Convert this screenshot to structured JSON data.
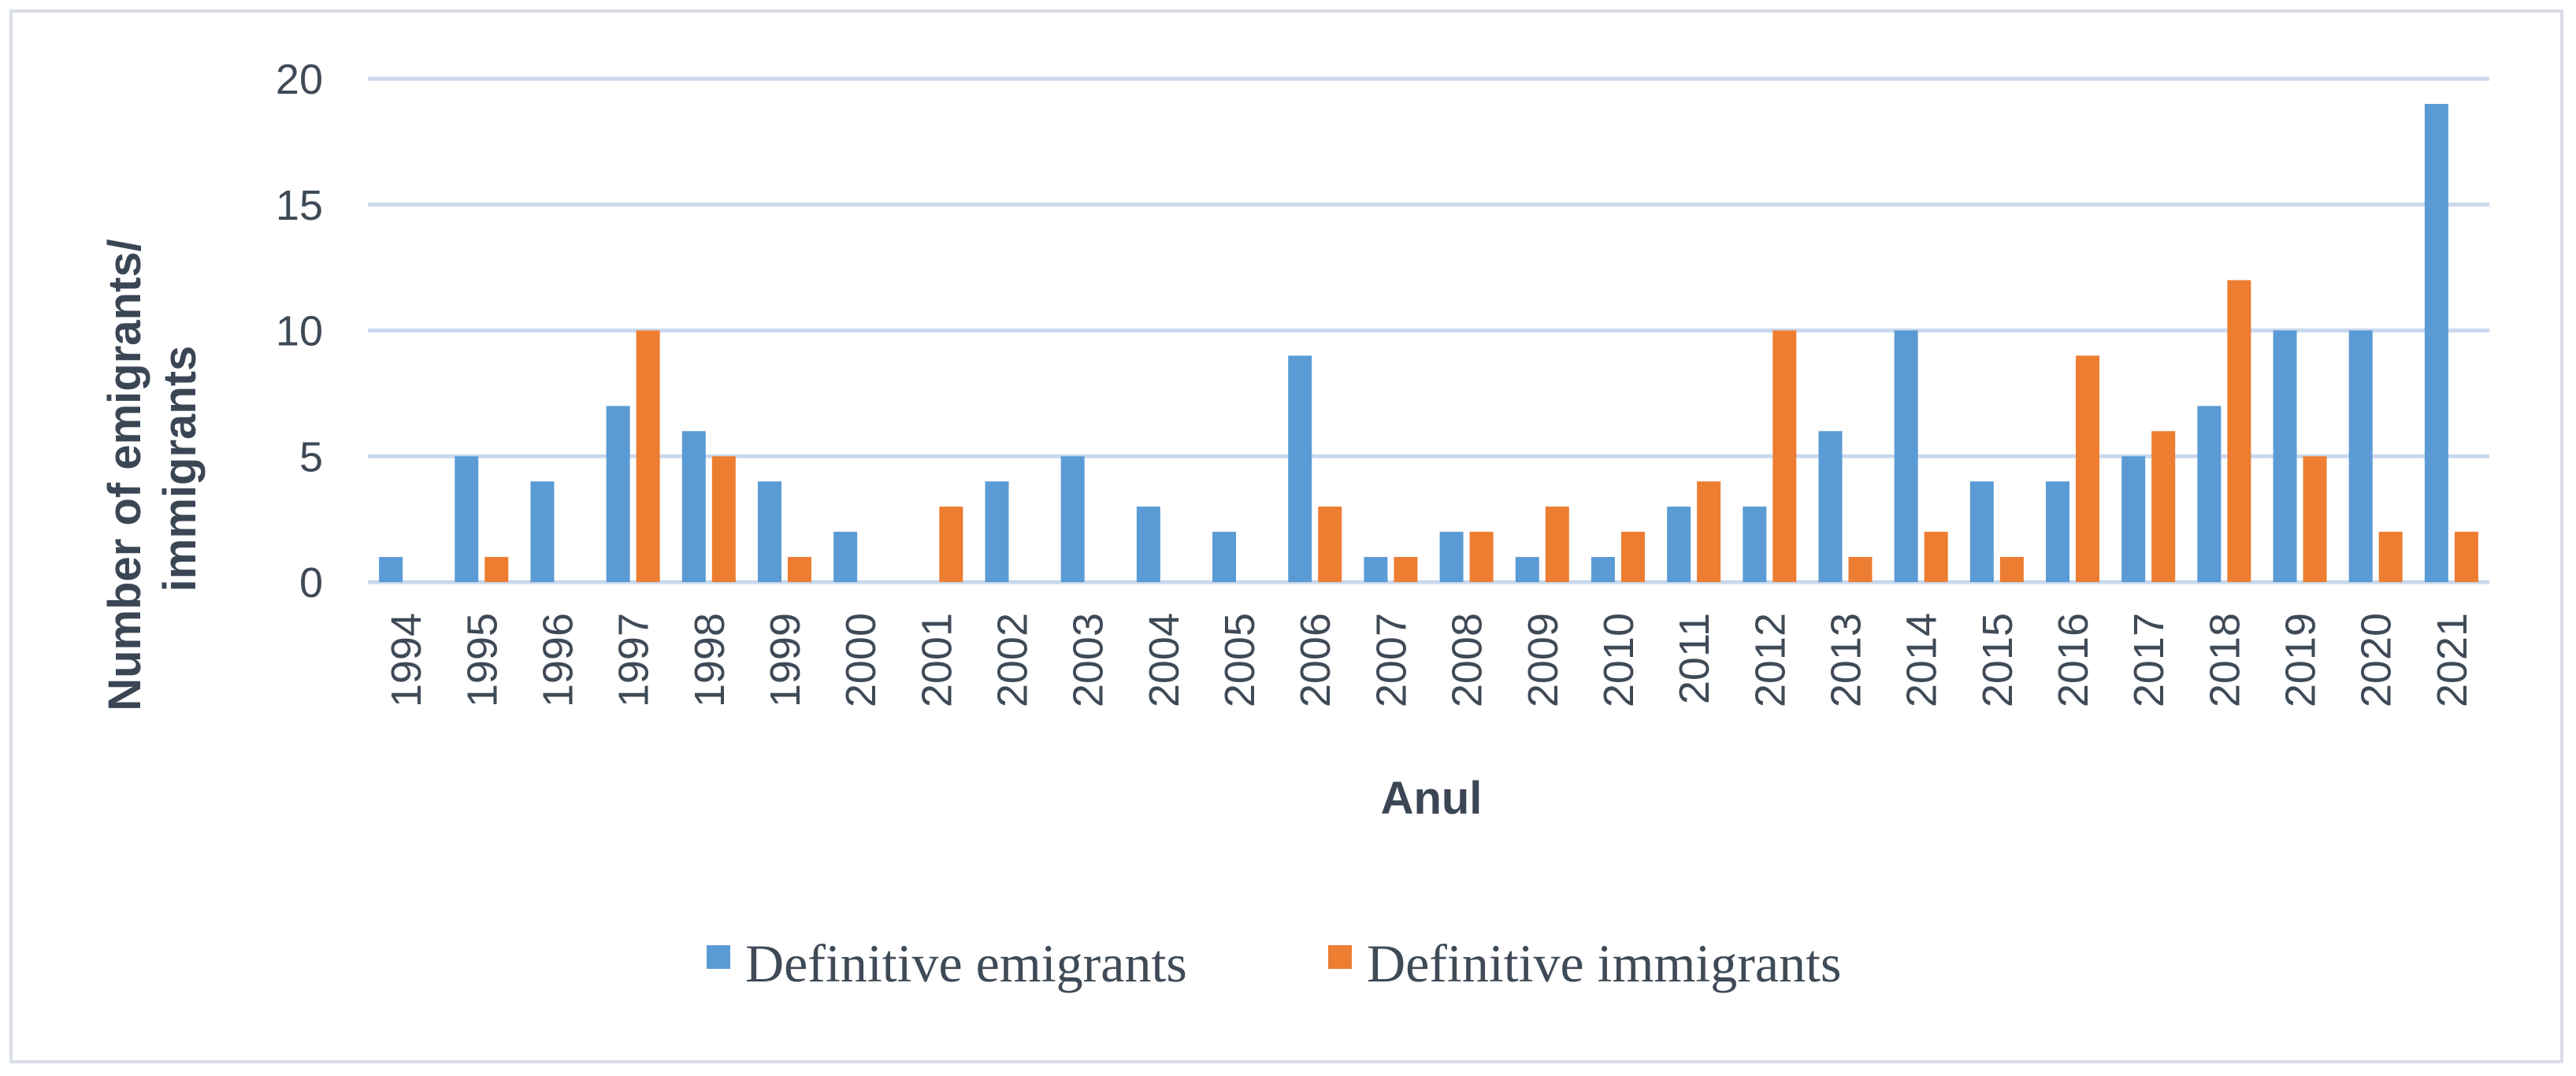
{
  "chart_data": {
    "type": "bar",
    "categories": [
      "1994",
      "1995",
      "1996",
      "1997",
      "1998",
      "1999",
      "2000",
      "2001",
      "2002",
      "2003",
      "2004",
      "2005",
      "2006",
      "2007",
      "2008",
      "2009",
      "2010",
      "2011",
      "2012",
      "2013",
      "2014",
      "2015",
      "2016",
      "2017",
      "2018",
      "2019",
      "2020",
      "2021"
    ],
    "series": [
      {
        "name": "Definitive emigrants",
        "color": "#5b9bd5",
        "values": [
          1,
          5,
          4,
          7,
          6,
          4,
          2,
          0,
          4,
          5,
          3,
          2,
          9,
          1,
          2,
          1,
          1,
          3,
          3,
          6,
          10,
          4,
          4,
          5,
          7,
          10,
          10,
          19
        ]
      },
      {
        "name": "Definitive immigrants",
        "color": "#ed7d31",
        "values": [
          0,
          1,
          0,
          10,
          5,
          1,
          0,
          3,
          0,
          0,
          0,
          0,
          3,
          1,
          2,
          3,
          2,
          4,
          10,
          1,
          2,
          1,
          9,
          6,
          12,
          5,
          2,
          2
        ]
      }
    ],
    "title": "",
    "xlabel": "Anul",
    "ylabel": "Number of emigrants/ immigrants",
    "ylim": [
      0,
      20
    ],
    "yticks": [
      "0",
      "5",
      "10",
      "15",
      "20"
    ],
    "grid": true,
    "legend_position": "bottom"
  }
}
